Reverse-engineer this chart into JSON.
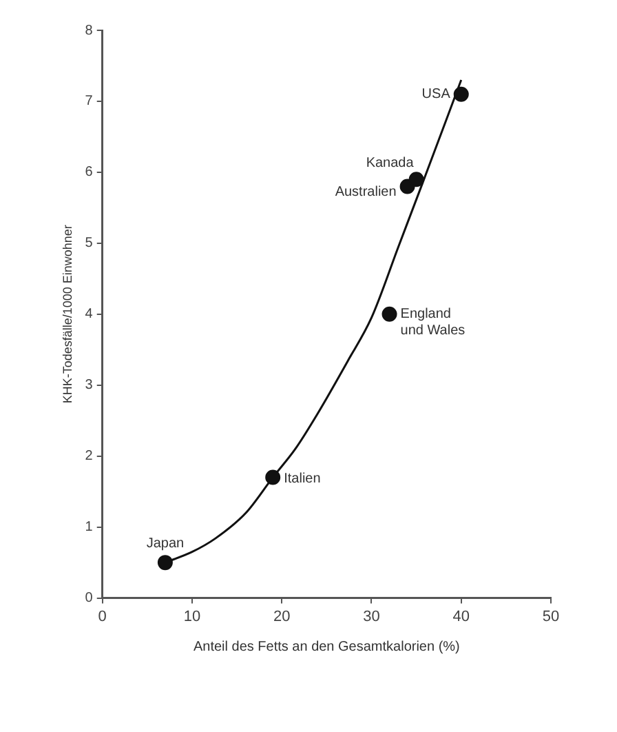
{
  "chart_data": {
    "type": "scatter",
    "xlabel": "Anteil des Fetts an den Gesamtkalorien (%)",
    "ylabel": "KHK-Todesfälle/1000 Einwohner",
    "xlim": [
      0,
      50
    ],
    "xticks": [
      0,
      10,
      20,
      30,
      40,
      50
    ],
    "ylim": [
      0,
      8
    ],
    "yticks": [
      0,
      1,
      2,
      3,
      4,
      5,
      6,
      7,
      8
    ],
    "grid": false,
    "legend": false,
    "marker": "circle",
    "series": [
      {
        "color": "#111111",
        "x": [
          7,
          19,
          32,
          34,
          35,
          40
        ],
        "values": [
          0.5,
          1.7,
          4.0,
          5.8,
          5.9,
          7.1
        ]
      },
      {
        "type": "line",
        "color": "#111111",
        "marker": "none",
        "x": [
          7,
          10,
          12.6,
          16,
          19,
          21.5,
          24,
          27.4,
          30,
          33,
          35.7,
          40
        ],
        "values": [
          0.5,
          0.65,
          0.84,
          1.2,
          1.7,
          2.1,
          2.6,
          3.35,
          3.95,
          4.95,
          5.85,
          7.3
        ]
      }
    ],
    "annotations": [
      {
        "text": "Japan",
        "x": 7,
        "y": 0.5
      },
      {
        "text": "Italien",
        "x": 19,
        "y": 1.7
      },
      {
        "text": "England\nund Wales",
        "x": 32,
        "y": 4.0
      },
      {
        "text": "Australien",
        "x": 34,
        "y": 5.8
      },
      {
        "text": "Kanada",
        "x": 35,
        "y": 5.9
      },
      {
        "text": "USA",
        "x": 40,
        "y": 7.1
      }
    ]
  }
}
